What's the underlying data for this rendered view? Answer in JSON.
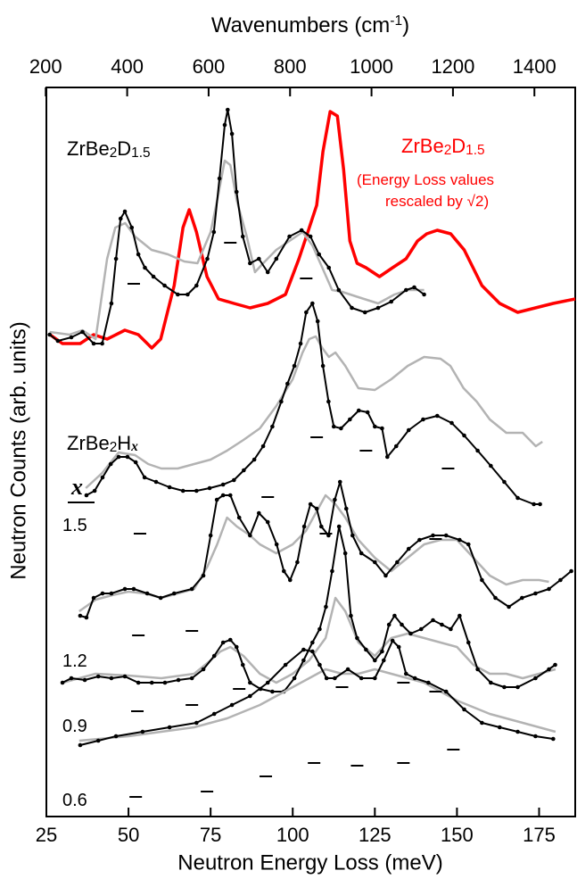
{
  "chart_data": {
    "type": "line",
    "xlabel": "Neutron Energy Loss (meV)",
    "ylabel": "Neutron Counts (arb. units)",
    "x2label": {
      "runs": [
        {
          "text": "Wavenumbers (cm"
        },
        {
          "text": "-1",
          "sup": true
        },
        {
          "text": ")"
        }
      ]
    },
    "xlim": [
      25,
      186
    ],
    "xticks": [
      25,
      50,
      75,
      100,
      125,
      150,
      175
    ],
    "x2lim": [
      201.6,
      1500.2
    ],
    "x2ticks": [
      200,
      400,
      600,
      800,
      1000,
      1200,
      1400
    ],
    "ylim": [
      40,
      857
    ],
    "series": [
      {
        "color": "#000000",
        "markers": true,
        "x": [
          26,
          28.5,
          32.6,
          36,
          39.4,
          42,
          44.8,
          46.2,
          47.6,
          48.9,
          51,
          53,
          55,
          57.6,
          61,
          65,
          68,
          70.7,
          74,
          76,
          77.7,
          79.3,
          80.2,
          81.5,
          82.9,
          84.8,
          87,
          89.7,
          92.4,
          95,
          99,
          102.7,
          105.4,
          108,
          111,
          114,
          118,
          122,
          126,
          130,
          134.5,
          137,
          140
        ],
        "values": [
          580,
          573,
          577,
          583,
          570,
          570,
          615,
          665,
          710,
          718,
          700,
          670,
          655,
          645,
          635,
          625,
          625,
          635,
          665,
          695,
          755,
          815,
          832,
          805,
          740,
          690,
          660,
          665,
          650,
          665,
          690,
          697,
          690,
          670,
          655,
          630,
          610,
          605,
          610,
          617,
          630,
          633,
          625
        ]
      },
      {
        "color": "#b3b3b3",
        "x": [
          26,
          32,
          36,
          40,
          43.5,
          46,
          49,
          52,
          57,
          62,
          67,
          71,
          75,
          77.5,
          79.3,
          81,
          83,
          86,
          88.5,
          91,
          95,
          99,
          103,
          106,
          109,
          112,
          115,
          120,
          126,
          131,
          135,
          140
        ],
        "values": [
          583,
          580,
          585,
          575,
          665,
          700,
          705,
          690,
          675,
          670,
          662,
          660,
          695,
          740,
          775,
          770,
          730,
          690,
          650,
          660,
          675,
          685,
          695,
          680,
          655,
          630,
          628,
          622,
          615,
          625,
          630,
          630
        ]
      },
      {
        "color": "#ff0000",
        "x": [
          26.1,
          29.9,
          35.3,
          39.4,
          43.5,
          48.9,
          53,
          57.1,
          59.8,
          63.9,
          66.6,
          68.5,
          70.7,
          73.9,
          77.4,
          82.1,
          87,
          92.4,
          97.8,
          101.9,
          104.6,
          107.3,
          109.2,
          111.4,
          113.6,
          115.5,
          117.4,
          119.6,
          122.3,
          126.4,
          130.4,
          134.5,
          138,
          140.8,
          144,
          148.1,
          152.2,
          157.6,
          163,
          168.5,
          173.9,
          179.3,
          186
        ],
        "values": [
          580,
          570,
          570,
          580,
          575,
          585,
          580,
          565,
          575,
          635,
          700,
          720,
          695,
          645,
          620,
          615,
          610,
          615,
          625,
          665,
          695,
          725,
          785,
          830,
          825,
          765,
          685,
          660,
          655,
          645,
          655,
          665,
          685,
          693,
          697,
          693,
          675,
          635,
          615,
          605,
          610,
          615,
          620
        ]
      },
      {
        "color": "#000000",
        "markers": true,
        "x": [
          37.2,
          39.7,
          42.1,
          44.6,
          47,
          49.7,
          52.2,
          54.9,
          58.4,
          62.5,
          66.6,
          70.7,
          74.7,
          78.8,
          82.1,
          85.1,
          88.3,
          91,
          93.8,
          96.5,
          98.4,
          100.5,
          102.4,
          104.1,
          106,
          107.6,
          109.2,
          110.9,
          112.5,
          114.7,
          117.4,
          120.1,
          122.8,
          125,
          127.2,
          128.8,
          131.5,
          135.3,
          139.7,
          144,
          148.4,
          152.2,
          156.3,
          160.3,
          164.4,
          168.5,
          173.4,
          175.3
        ],
        "values": [
          400,
          405,
          420,
          435,
          443,
          443,
          437,
          420,
          415,
          409,
          405,
          405,
          408,
          412,
          417,
          428,
          440,
          455,
          477,
          505,
          525,
          545,
          570,
          605,
          615,
          595,
          545,
          505,
          477,
          475,
          485,
          495,
          493,
          477,
          475,
          443,
          455,
          473,
          485,
          489,
          481,
          467,
          450,
          433,
          415,
          397,
          390,
          390
        ]
      },
      {
        "color": "#b3b3b3",
        "x": [
          37,
          42,
          47,
          52,
          56,
          60,
          65,
          70,
          75,
          80,
          85,
          90,
          95,
          100,
          103,
          105,
          107,
          109,
          111,
          113,
          116,
          120,
          125,
          130,
          135,
          140,
          145,
          148,
          152,
          156,
          160,
          165,
          170,
          174,
          176
        ],
        "values": [
          408,
          425,
          448,
          445,
          435,
          430,
          430,
          435,
          440,
          450,
          462,
          475,
          500,
          530,
          560,
          575,
          578,
          565,
          555,
          560,
          545,
          520,
          518,
          530,
          545,
          555,
          553,
          545,
          520,
          505,
          485,
          470,
          470,
          455,
          460
        ]
      },
      {
        "color": "#000000",
        "markers": true,
        "x": [
          35.3,
          37.2,
          39.4,
          42.1,
          44.8,
          48.9,
          51.6,
          55.7,
          59.8,
          63.9,
          69.3,
          72.8,
          75,
          76.9,
          78.8,
          81,
          83.7,
          87,
          89.7,
          92.4,
          95.1,
          97.3,
          99.2,
          101.4,
          103.5,
          105.4,
          107.3,
          108.7,
          110.9,
          112.8,
          114.4,
          116.3,
          118.2,
          120.9,
          125,
          128.3,
          131.8,
          135.3,
          138.6,
          142.7,
          146.7,
          150.8,
          153.5,
          157.6,
          161.7,
          165.8,
          169.8,
          173.9,
          178,
          181.5,
          184.8
        ],
        "values": [
          265,
          263,
          285,
          290,
          290,
          295,
          295,
          290,
          285,
          290,
          295,
          310,
          355,
          395,
          400,
          400,
          375,
          355,
          380,
          370,
          345,
          315,
          305,
          325,
          365,
          390,
          385,
          365,
          355,
          395,
          415,
          385,
          355,
          335,
          325,
          310,
          325,
          340,
          350,
          355,
          355,
          350,
          345,
          305,
          285,
          275,
          285,
          290,
          295,
          305,
          315
        ]
      },
      {
        "color": "#b3b3b3",
        "x": [
          35,
          40,
          45,
          50,
          55,
          60,
          65,
          70,
          74,
          77,
          80,
          83,
          87,
          90,
          95,
          100,
          104,
          107,
          110,
          113,
          116,
          120,
          125,
          130,
          135,
          140,
          145,
          150,
          155,
          160,
          165,
          170,
          175,
          178
        ],
        "values": [
          270,
          283,
          288,
          292,
          290,
          285,
          290,
          295,
          320,
          345,
          375,
          365,
          355,
          345,
          335,
          345,
          360,
          380,
          400,
          390,
          375,
          350,
          330,
          315,
          330,
          345,
          350,
          350,
          330,
          310,
          300,
          305,
          305,
          303
        ]
      },
      {
        "color": "#000000",
        "markers": true,
        "x": [
          29.9,
          32.6,
          36.7,
          40.8,
          44.8,
          48.9,
          53,
          57.1,
          61.1,
          65.2,
          69.3,
          72.8,
          76.1,
          78.8,
          81,
          82.9,
          84.8,
          87,
          90.2,
          93.8,
          97.3,
          100.5,
          103.3,
          106,
          108.2,
          110.1,
          112,
          114.1,
          116,
          117.7,
          119.6,
          122.3,
          125,
          127.2,
          129.3,
          131,
          133.2,
          135.9,
          139.1,
          142.7,
          145.4,
          148.1,
          150.8,
          153.5,
          156.3,
          160.3,
          164.4,
          168.5,
          173.9,
          178,
          179.9
        ],
        "values": [
          190,
          195,
          193,
          197,
          195,
          197,
          190,
          190,
          190,
          193,
          195,
          205,
          220,
          235,
          238,
          230,
          210,
          190,
          183,
          180,
          180,
          195,
          215,
          235,
          250,
          275,
          315,
          365,
          335,
          265,
          240,
          227,
          215,
          225,
          255,
          265,
          255,
          245,
          250,
          260,
          255,
          250,
          265,
          235,
          205,
          190,
          185,
          185,
          195,
          205,
          210
        ]
      },
      {
        "color": "#b3b3b3",
        "x": [
          30,
          40,
          50,
          60,
          70,
          75,
          78,
          81,
          85,
          90,
          95,
          100,
          105,
          110,
          113,
          116,
          120,
          125,
          130,
          135,
          140,
          145,
          150,
          155,
          160,
          165,
          170,
          175,
          180
        ],
        "values": [
          190,
          200,
          198,
          195,
          200,
          215,
          225,
          230,
          220,
          200,
          190,
          200,
          215,
          240,
          285,
          270,
          235,
          220,
          240,
          245,
          240,
          235,
          230,
          210,
          200,
          200,
          195,
          200,
          205
        ]
      },
      {
        "color": "#000000",
        "markers": true,
        "x": [
          35.3,
          40.8,
          46.2,
          54.3,
          62.5,
          70.7,
          76.1,
          81.5,
          87,
          92.4,
          97.8,
          103.3,
          106,
          108.2,
          110.3,
          112.8,
          116.8,
          120.9,
          125,
          127.7,
          130.4,
          132.3,
          134.5,
          137.2,
          141.3,
          146.7,
          152.2,
          157.6,
          163,
          168.5,
          173.9,
          179.3
        ],
        "values": [
          120,
          125,
          130,
          135,
          140,
          145,
          155,
          165,
          175,
          190,
          210,
          227,
          225,
          210,
          195,
          195,
          205,
          195,
          195,
          215,
          237,
          230,
          200,
          195,
          190,
          180,
          160,
          145,
          140,
          135,
          130,
          127
        ]
      },
      {
        "color": "#b3b3b3",
        "x": [
          35,
          50,
          60,
          70,
          80,
          90,
          100,
          105,
          110,
          115,
          120,
          125,
          130,
          135,
          140,
          145,
          150,
          160,
          170,
          180
        ],
        "values": [
          125,
          130,
          135,
          140,
          150,
          165,
          185,
          195,
          205,
          200,
          200,
          205,
          200,
          195,
          190,
          180,
          170,
          155,
          145,
          135
        ]
      }
    ],
    "peak_marks": {
      "x": [
        51.6,
        81,
        104.1,
        53.5,
        92.4,
        107.3,
        122.3,
        147.3,
        53,
        69.3,
        110.1,
        143.5,
        52.7,
        69.3,
        83.7,
        115,
        133.7,
        143.5,
        52.2,
        73.9,
        91.8,
        106.5,
        119.6,
        133.7,
        148.9
      ],
      "y": [
        637,
        683,
        643,
        357,
        398,
        465,
        450,
        430,
        243,
        248,
        357,
        351,
        158,
        165,
        183,
        185,
        190,
        180,
        62,
        68,
        85,
        100,
        97,
        100,
        115
      ]
    },
    "annotations": [
      {
        "color": "#000000",
        "runs": [
          {
            "text": "ZrBe"
          },
          {
            "text": "2",
            "sub": true
          },
          {
            "text": "D"
          },
          {
            "text": "1.5",
            "sub": true
          }
        ]
      },
      {
        "color": "#ff0000",
        "runs": [
          {
            "text": "ZrBe"
          },
          {
            "text": "2",
            "sub": true
          },
          {
            "text": "D"
          },
          {
            "text": "1.5",
            "sub": true
          }
        ]
      },
      {
        "color": "#ff0000",
        "runs": [
          {
            "text": "(Energy Loss values"
          }
        ]
      },
      {
        "color": "#ff0000",
        "runs": [
          {
            "text": "rescaled by √2)"
          }
        ]
      },
      {
        "color": "#000000",
        "runs": [
          {
            "text": "ZrBe"
          },
          {
            "text": "2",
            "sub": true
          },
          {
            "text": "H"
          },
          {
            "text": "x",
            "sub": true,
            "italic": true
          }
        ]
      },
      {
        "color": "#000000",
        "runs": [
          {
            "text": "x",
            "italic": true
          }
        ]
      },
      {
        "color": "#000000",
        "runs": [
          {
            "text": "1.5"
          }
        ]
      },
      {
        "color": "#000000",
        "runs": [
          {
            "text": "1.2"
          }
        ]
      },
      {
        "color": "#000000",
        "runs": [
          {
            "text": "0.9"
          }
        ]
      },
      {
        "color": "#000000",
        "runs": [
          {
            "text": "0.6"
          }
        ]
      }
    ]
  }
}
